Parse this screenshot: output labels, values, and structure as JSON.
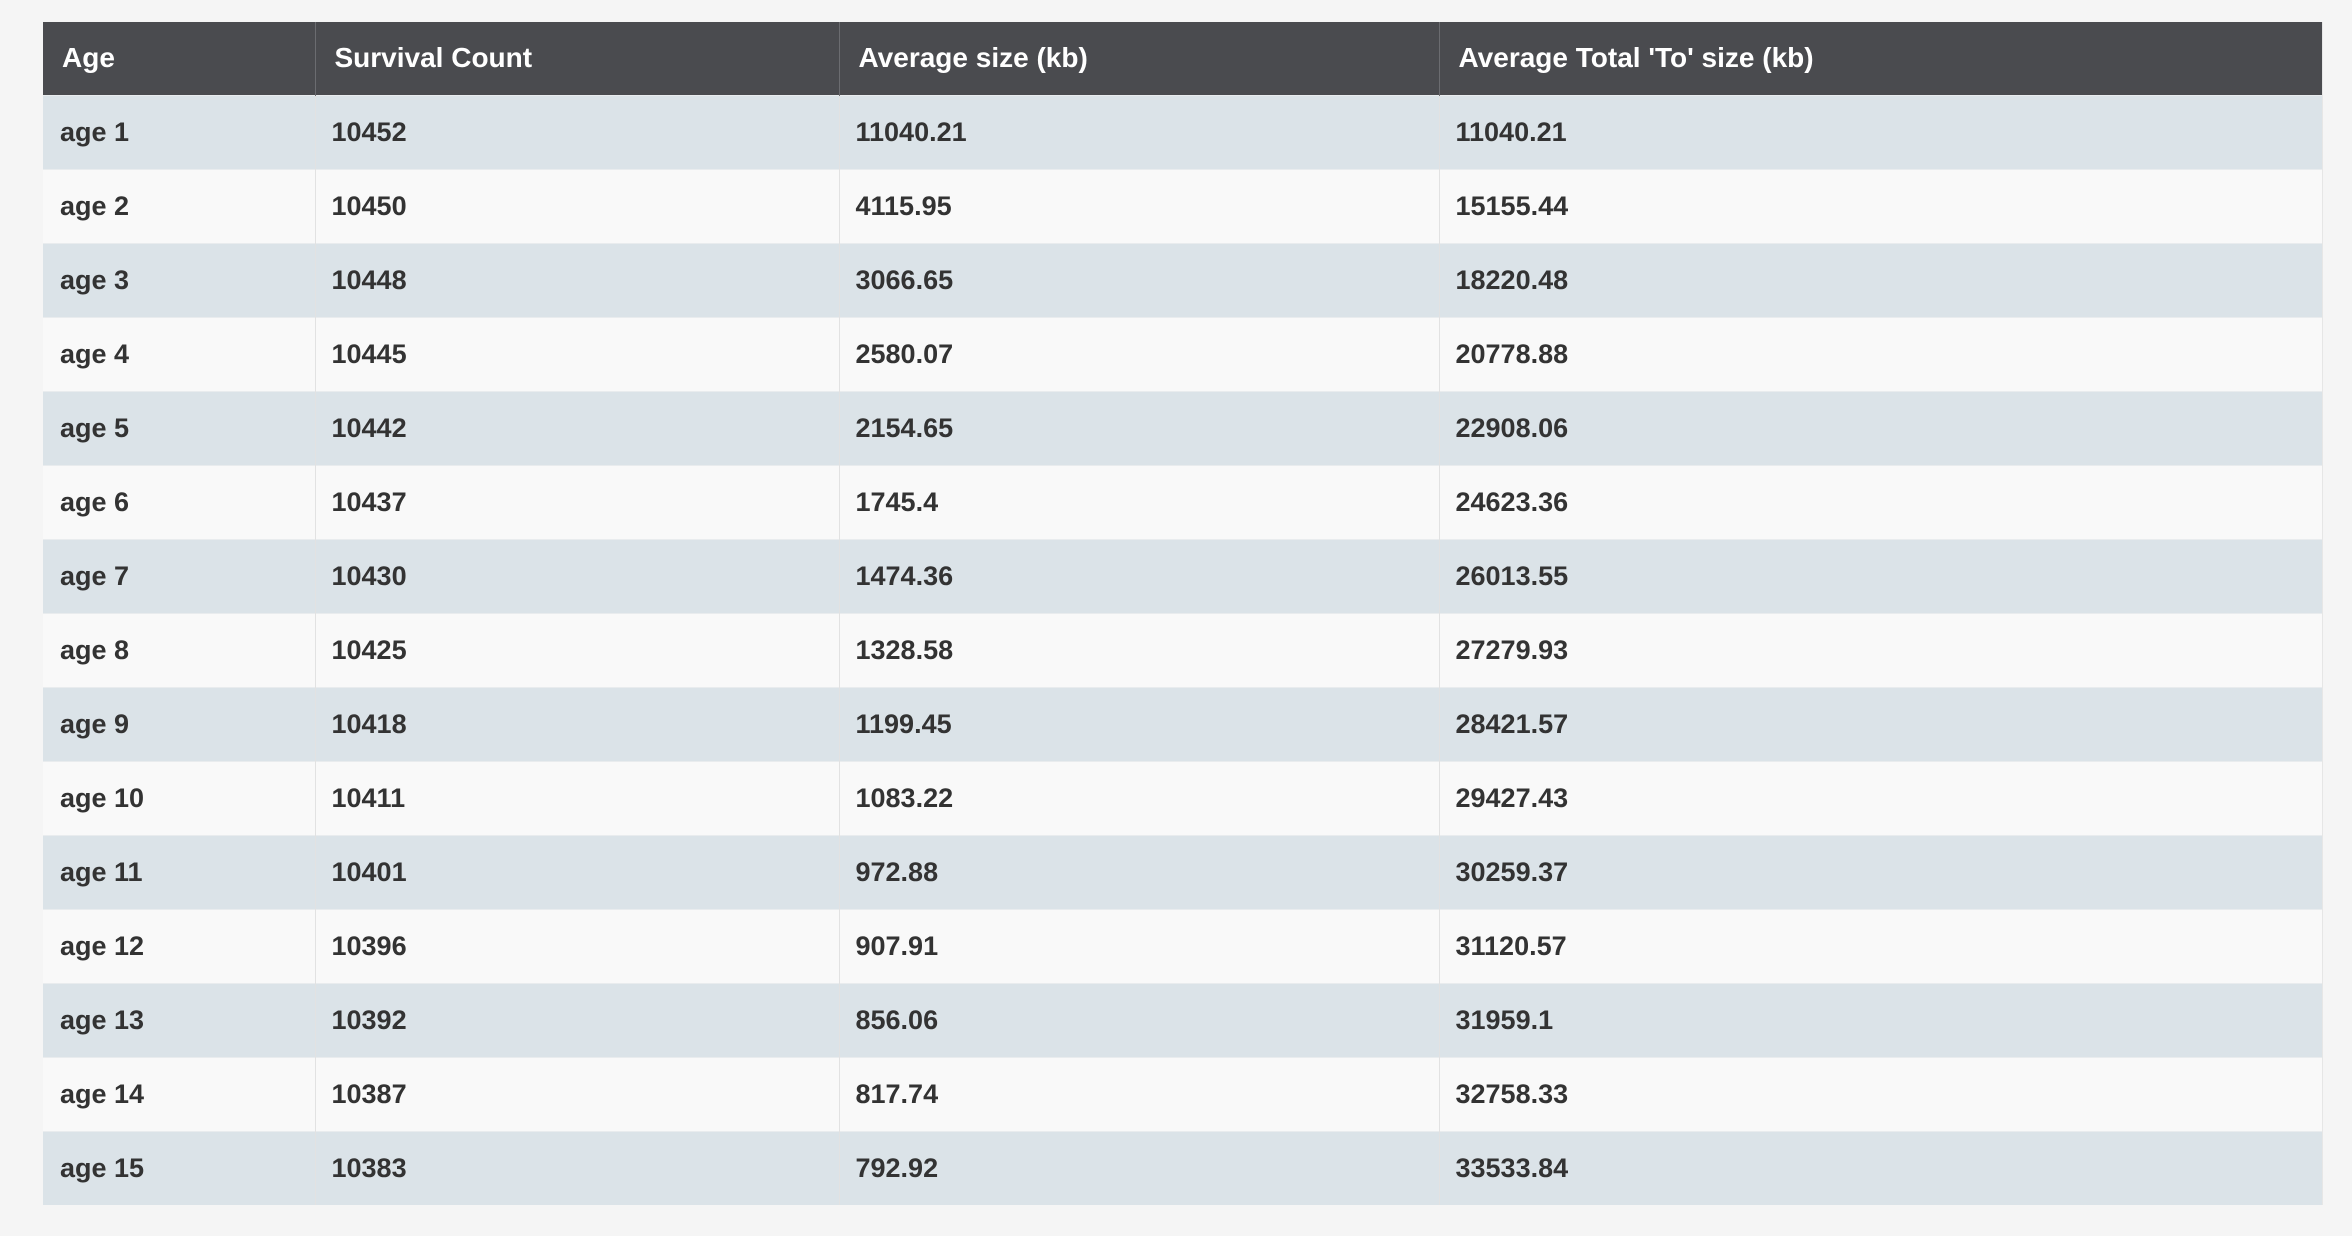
{
  "table": {
    "headers": [
      "Age",
      "Survival Count",
      "Average size (kb)",
      "Average Total 'To' size (kb)"
    ],
    "rows": [
      [
        "age 1",
        "10452",
        "11040.21",
        "11040.21"
      ],
      [
        "age 2",
        "10450",
        "4115.95",
        "15155.44"
      ],
      [
        "age 3",
        "10448",
        "3066.65",
        "18220.48"
      ],
      [
        "age 4",
        "10445",
        "2580.07",
        "20778.88"
      ],
      [
        "age 5",
        "10442",
        "2154.65",
        "22908.06"
      ],
      [
        "age 6",
        "10437",
        "1745.4",
        "24623.36"
      ],
      [
        "age 7",
        "10430",
        "1474.36",
        "26013.55"
      ],
      [
        "age 8",
        "10425",
        "1328.58",
        "27279.93"
      ],
      [
        "age 9",
        "10418",
        "1199.45",
        "28421.57"
      ],
      [
        "age 10",
        "10411",
        "1083.22",
        "29427.43"
      ],
      [
        "age 11",
        "10401",
        "972.88",
        "30259.37"
      ],
      [
        "age 12",
        "10396",
        "907.91",
        "31120.57"
      ],
      [
        "age 13",
        "10392",
        "856.06",
        "31959.1"
      ],
      [
        "age 14",
        "10387",
        "817.74",
        "32758.33"
      ],
      [
        "age 15",
        "10383",
        "792.92",
        "33533.84"
      ]
    ]
  },
  "colors": {
    "header_bg": "#4a4b4f",
    "row_odd_bg": "#dbe3e8",
    "row_even_bg": "#f9f9f9",
    "text": "#333333"
  }
}
